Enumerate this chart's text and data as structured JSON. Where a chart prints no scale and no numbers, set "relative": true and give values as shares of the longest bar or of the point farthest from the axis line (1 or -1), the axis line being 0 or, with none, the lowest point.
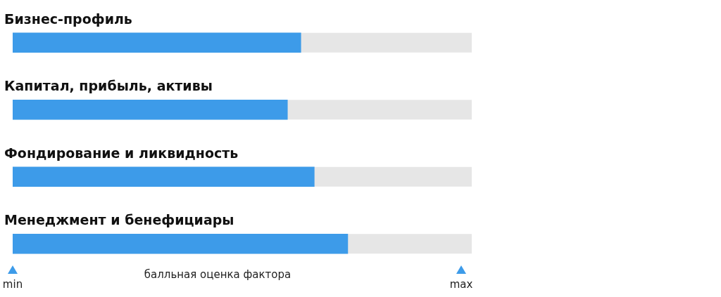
{
  "chart_data": {
    "type": "bar",
    "orientation": "horizontal",
    "relative": true,
    "categories": [
      "Бизнес-профиль",
      "Капитал, прибыль, активы",
      "Фондирование и ликвидность",
      "Менеджмент и бенефициары"
    ],
    "values": [
      0.86,
      0.82,
      0.9,
      1
    ],
    "color": "#3d9be9",
    "xlabel": "балльная оценка фактора",
    "annotations": [
      "min",
      "max"
    ],
    "legend": false
  }
}
